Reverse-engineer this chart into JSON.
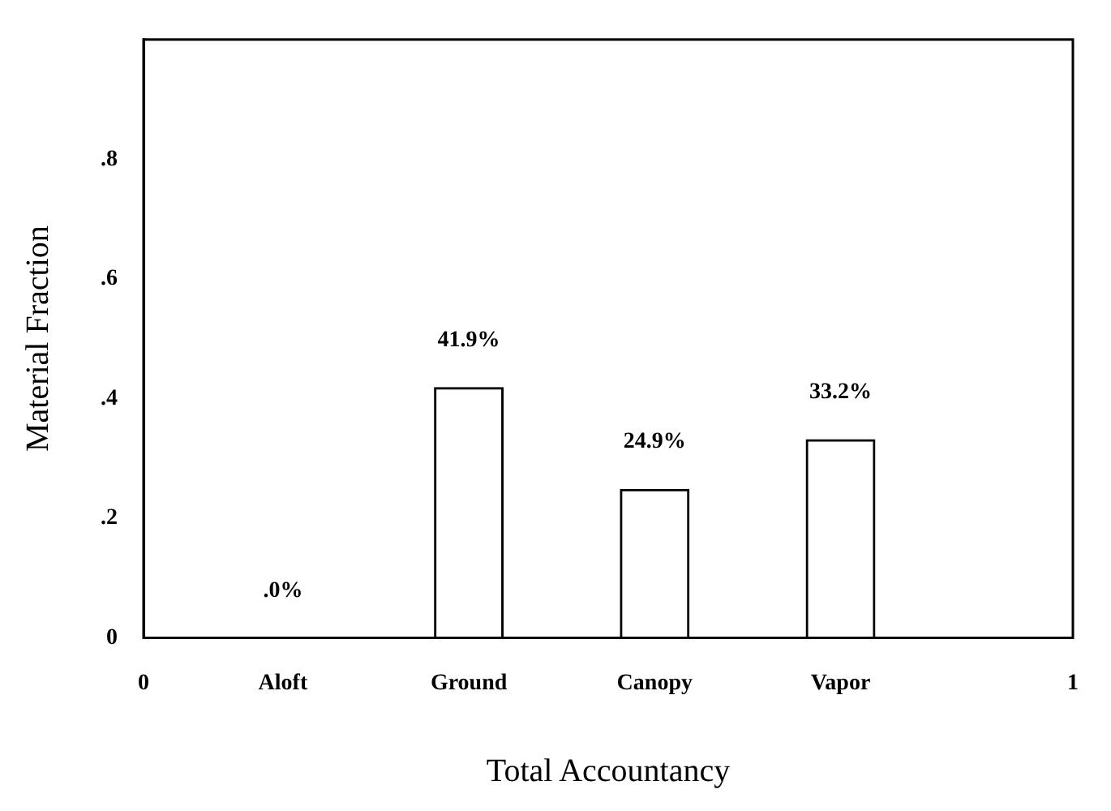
{
  "chart_data": {
    "type": "bar",
    "xlabel": "Total Accountancy",
    "ylabel": "Material Fraction",
    "x": [
      0.15,
      0.35,
      0.55,
      0.75
    ],
    "values": [
      0,
      0.419,
      0.249,
      0.332
    ],
    "value_labels": [
      ".0%",
      "41.9%",
      "24.9%",
      "33.2%"
    ],
    "color": "#000000",
    "xlim": [
      0,
      1
    ],
    "xticks": [
      0,
      {
        "value": 0.15,
        "label": "Aloft"
      },
      {
        "value": 0.35,
        "label": "Ground"
      },
      {
        "value": 0.55,
        "label": "Canopy"
      },
      {
        "value": 0.75,
        "label": "Vapor"
      },
      1
    ],
    "ylim": [
      0,
      1
    ],
    "yticks": [
      0,
      {
        "value": 0.2,
        "label": ".2"
      },
      {
        "value": 0.4,
        "label": ".4"
      },
      {
        "value": 0.6,
        "label": ".6"
      },
      {
        "value": 0.8,
        "label": ".8"
      }
    ],
    "grid": false,
    "legend": false
  }
}
